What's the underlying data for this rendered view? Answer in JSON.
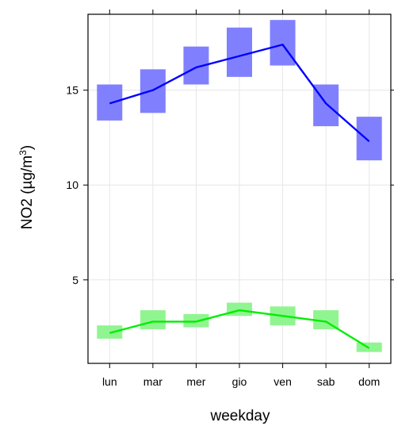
{
  "chart_data": {
    "type": "line",
    "xlabel": "weekday",
    "ylabel_main": "NO2 (µg/m",
    "ylabel_sup": "3",
    "ylabel_close": ")",
    "categories": [
      "lun",
      "mar",
      "mer",
      "gio",
      "ven",
      "sab",
      "dom"
    ],
    "y_ticks": [
      5,
      10,
      15
    ],
    "ylim": [
      0.6,
      19.0
    ],
    "grid": true,
    "series": [
      {
        "color": "#0000ff",
        "band_color": "#8080ff",
        "values": [
          14.3,
          15.0,
          16.2,
          16.8,
          17.4,
          14.3,
          12.3
        ],
        "lower": [
          13.4,
          13.8,
          15.3,
          15.7,
          16.3,
          13.1,
          11.3
        ],
        "upper": [
          15.3,
          16.1,
          17.3,
          18.3,
          18.7,
          15.3,
          13.6
        ]
      },
      {
        "color": "#00ee00",
        "band_color": "#90f590",
        "values": [
          2.2,
          2.8,
          2.8,
          3.4,
          3.1,
          2.8,
          1.4
        ],
        "lower": [
          1.9,
          2.4,
          2.5,
          3.1,
          2.6,
          2.4,
          1.2
        ],
        "upper": [
          2.6,
          3.4,
          3.2,
          3.8,
          3.6,
          3.4,
          1.7
        ]
      }
    ]
  }
}
